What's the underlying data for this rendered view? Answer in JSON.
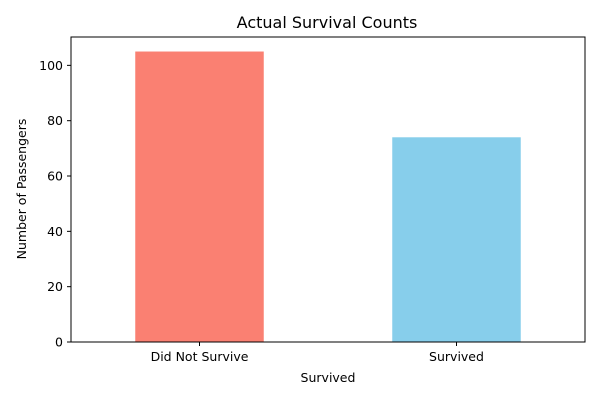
{
  "chart_data": {
    "type": "bar",
    "title": "Actual Survival Counts",
    "xlabel": "Survived",
    "ylabel": "Number of Passengers",
    "categories": [
      "Did Not Survive",
      "Survived"
    ],
    "values": [
      105,
      74
    ],
    "colors": [
      "#fa8072",
      "#87ceeb"
    ],
    "ylim": [
      0,
      110.25
    ],
    "yticks": [
      0,
      20,
      40,
      60,
      80,
      100
    ],
    "grid": false,
    "legend": "none"
  }
}
